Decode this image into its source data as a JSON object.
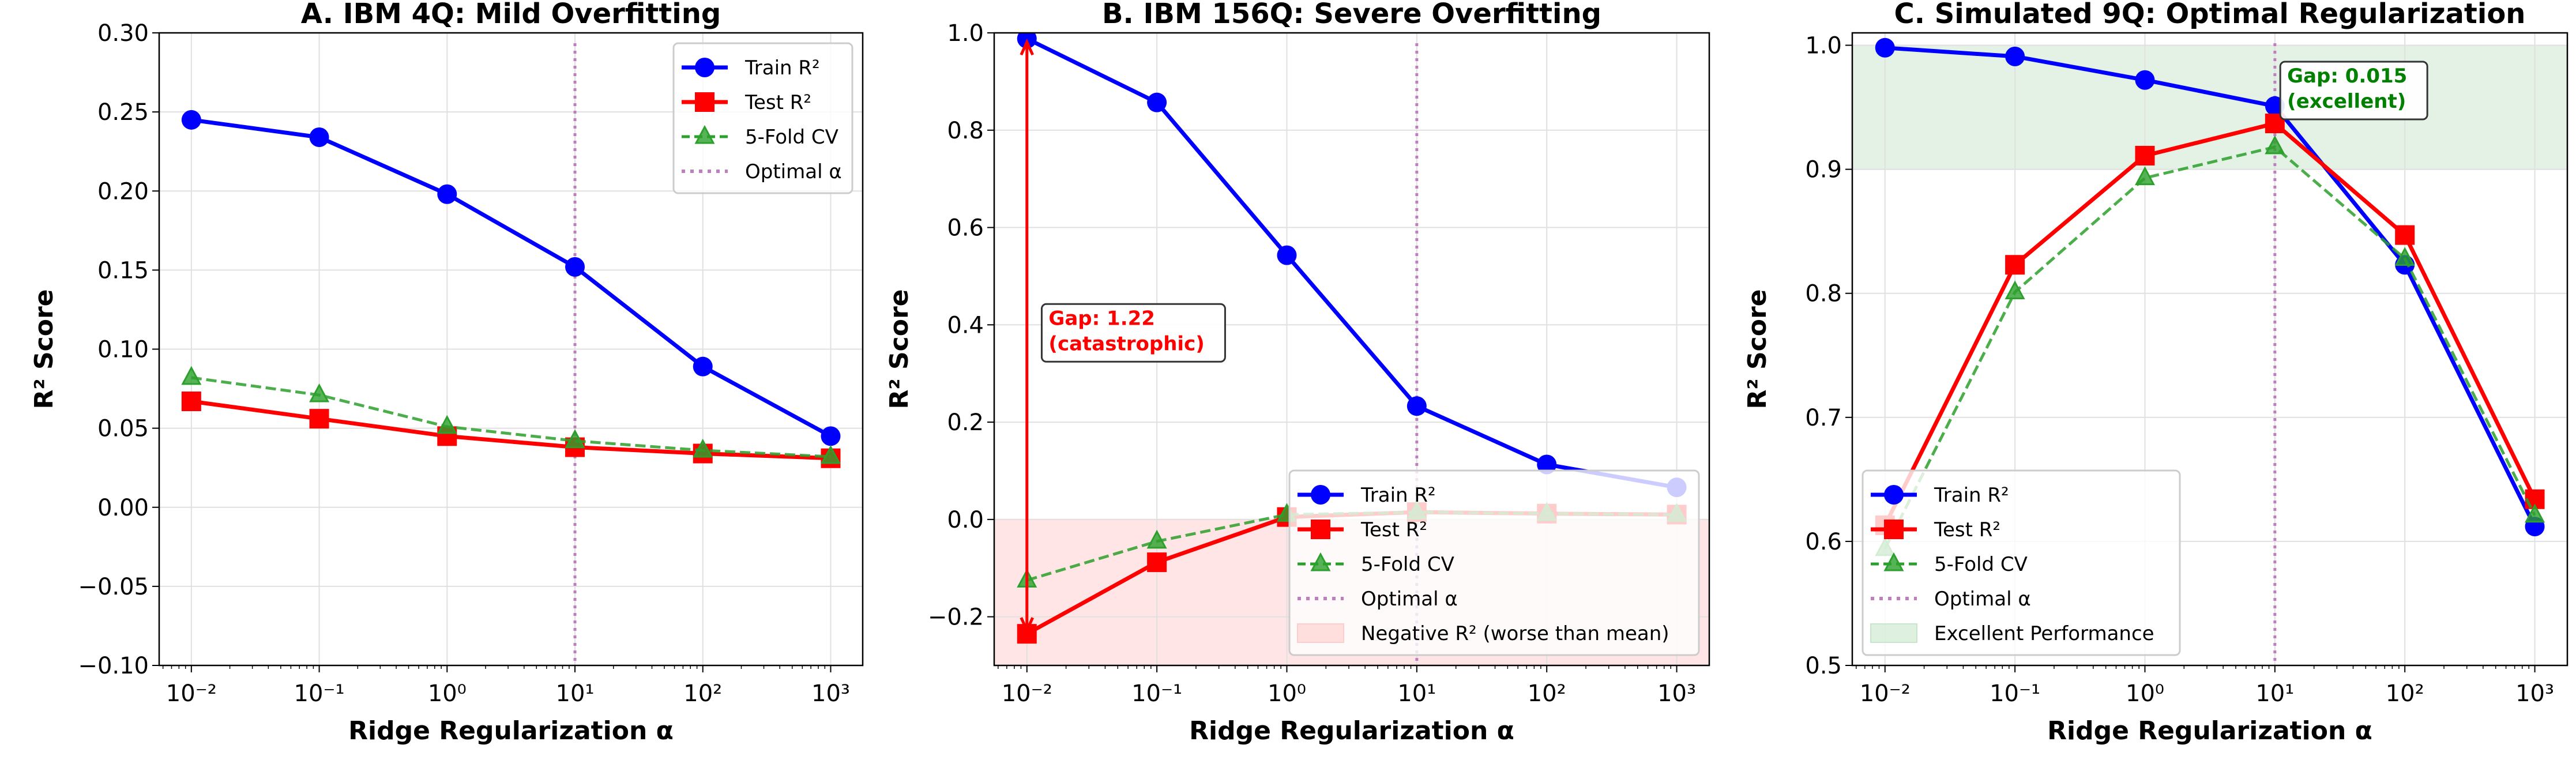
{
  "chart_data": [
    {
      "type": "line",
      "title": "A. IBM 4Q: Mild Overfitting",
      "xlabel": "Ridge Regularization α",
      "ylabel": "R² Score",
      "xscale": "log",
      "x": [
        0.01,
        0.1,
        1,
        10,
        100,
        1000
      ],
      "xticks": [
        0.01,
        0.1,
        1,
        10,
        100,
        1000
      ],
      "xtick_labels": [
        "10⁻²",
        "10⁻¹",
        "10⁰",
        "10¹",
        "10²",
        "10³"
      ],
      "xlim": [
        0.0056,
        1780
      ],
      "ylim": [
        -0.1,
        0.3
      ],
      "yticks": [
        -0.1,
        -0.05,
        0.0,
        0.05,
        0.1,
        0.15,
        0.2,
        0.25,
        0.3
      ],
      "ytick_labels": [
        "−0.10",
        "−0.05",
        "0.00",
        "0.05",
        "0.10",
        "0.15",
        "0.20",
        "0.25",
        "0.30"
      ],
      "grid": true,
      "legend_placement": "top-right",
      "optimal_alpha": 10,
      "series": [
        {
          "name": "Train R²",
          "color": "#0000ff",
          "marker": "circle",
          "linestyle": "solid",
          "values": [
            0.245,
            0.234,
            0.198,
            0.152,
            0.089,
            0.045
          ]
        },
        {
          "name": "Test R²",
          "color": "#ff0000",
          "marker": "square",
          "linestyle": "solid",
          "values": [
            0.067,
            0.056,
            0.045,
            0.038,
            0.034,
            0.031
          ]
        },
        {
          "name": "5-Fold CV",
          "color": "#2ca02c",
          "marker": "triangle",
          "linestyle": "dashed",
          "values": [
            0.082,
            0.071,
            0.051,
            0.042,
            0.036,
            0.032
          ]
        }
      ],
      "optimal_label": "Optimal α"
    },
    {
      "type": "line",
      "title": "B. IBM 156Q: Severe Overfitting",
      "xlabel": "Ridge Regularization α",
      "ylabel": "R² Score",
      "xscale": "log",
      "x": [
        0.01,
        0.1,
        1,
        10,
        100,
        1000
      ],
      "xticks": [
        0.01,
        0.1,
        1,
        10,
        100,
        1000
      ],
      "xtick_labels": [
        "10⁻²",
        "10⁻¹",
        "10⁰",
        "10¹",
        "10²",
        "10³"
      ],
      "xlim": [
        0.0056,
        1780
      ],
      "ylim": [
        -0.3,
        1.0
      ],
      "yticks": [
        -0.2,
        0.0,
        0.2,
        0.4,
        0.6,
        0.8,
        1.0
      ],
      "ytick_labels": [
        "−0.2",
        "0.0",
        "0.2",
        "0.4",
        "0.6",
        "0.8",
        "1.0"
      ],
      "grid": true,
      "legend_placement": "bottom-right",
      "optimal_alpha": 10,
      "series": [
        {
          "name": "Train R²",
          "color": "#0000ff",
          "marker": "circle",
          "linestyle": "solid",
          "values": [
            0.988,
            0.857,
            0.543,
            0.233,
            0.113,
            0.066
          ]
        },
        {
          "name": "Test R²",
          "color": "#ff0000",
          "marker": "square",
          "linestyle": "solid",
          "values": [
            -0.235,
            -0.088,
            0.005,
            0.015,
            0.012,
            0.01
          ]
        },
        {
          "name": "5-Fold CV",
          "color": "#2ca02c",
          "marker": "triangle",
          "linestyle": "dashed",
          "values": [
            -0.125,
            -0.045,
            0.01,
            0.015,
            0.012,
            0.01
          ]
        }
      ],
      "optimal_label": "Optimal α",
      "band": {
        "y0": -0.3,
        "y1": 0.0,
        "color": "#ffcccc",
        "label": "Negative R² (worse than mean)"
      },
      "gap_arrow": {
        "x": 0.01,
        "y0": -0.235,
        "y1": 0.988,
        "color": "#ff0000"
      },
      "annotation": {
        "lines": [
          "Gap: 1.22",
          "(catastrophic)"
        ],
        "color": "#ff0000",
        "x": 0.013,
        "y": 0.4
      }
    },
    {
      "type": "line",
      "title": "C. Simulated 9Q: Optimal Regularization",
      "xlabel": "Ridge Regularization α",
      "ylabel": "R² Score",
      "xscale": "log",
      "x": [
        0.01,
        0.1,
        1,
        10,
        100,
        1000
      ],
      "xticks": [
        0.01,
        0.1,
        1,
        10,
        100,
        1000
      ],
      "xtick_labels": [
        "10⁻²",
        "10⁻¹",
        "10⁰",
        "10¹",
        "10²",
        "10³"
      ],
      "xlim": [
        0.0056,
        1780
      ],
      "ylim": [
        0.5,
        1.01
      ],
      "yticks": [
        0.5,
        0.6,
        0.7,
        0.8,
        0.9,
        1.0
      ],
      "ytick_labels": [
        "0.5",
        "0.6",
        "0.7",
        "0.8",
        "0.9",
        "1.0"
      ],
      "grid": true,
      "legend_placement": "bottom-left",
      "optimal_alpha": 10,
      "series": [
        {
          "name": "Train R²",
          "color": "#0000ff",
          "marker": "circle",
          "linestyle": "solid",
          "values": [
            0.998,
            0.991,
            0.972,
            0.951,
            0.823,
            0.612
          ]
        },
        {
          "name": "Test R²",
          "color": "#ff0000",
          "marker": "square",
          "linestyle": "solid",
          "values": [
            0.613,
            0.823,
            0.911,
            0.937,
            0.847,
            0.634
          ]
        },
        {
          "name": "5-Fold CV",
          "color": "#2ca02c",
          "marker": "triangle",
          "linestyle": "dashed",
          "values": [
            0.594,
            0.801,
            0.893,
            0.918,
            0.828,
            0.621
          ]
        }
      ],
      "optimal_label": "Optimal α",
      "band": {
        "y0": 0.9,
        "y1": 1.0,
        "color": "#c8e6c9",
        "label": "Excellent Performance"
      },
      "annotation": {
        "lines": [
          "Gap: 0.015",
          "(excellent)"
        ],
        "color": "#008000",
        "x": 11,
        "y": 0.97
      }
    }
  ],
  "colors": {
    "optimal_line": "#bf7fbf",
    "grid": "#e0e0e0"
  }
}
